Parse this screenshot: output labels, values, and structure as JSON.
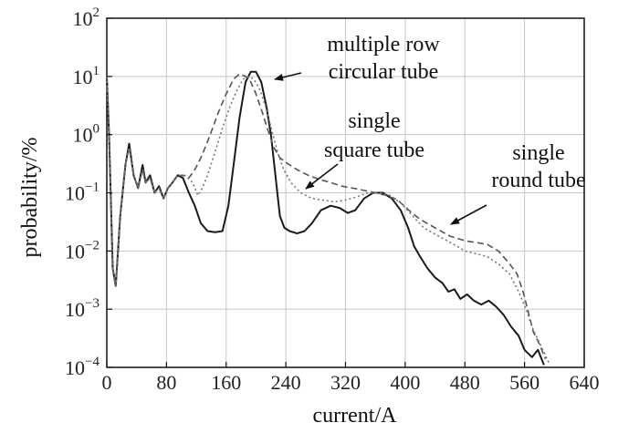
{
  "chart_data": {
    "type": "line",
    "title": "",
    "xlabel": "current/A",
    "ylabel": "probability/%",
    "xlim": [
      0,
      640
    ],
    "ylim": [
      0.0001,
      100
    ],
    "yscale": "log",
    "grid": true,
    "x_ticks": [
      {
        "value": 0,
        "label": "0"
      },
      {
        "value": 80,
        "label": "80"
      },
      {
        "value": 160,
        "label": "160"
      },
      {
        "value": 240,
        "label": "240"
      },
      {
        "value": 320,
        "label": "320"
      },
      {
        "value": 400,
        "label": "400"
      },
      {
        "value": 480,
        "label": "480"
      },
      {
        "value": 560,
        "label": "560"
      },
      {
        "value": 640,
        "label": "640"
      }
    ],
    "y_ticks": [
      {
        "value": 0.0001,
        "exp": "−4"
      },
      {
        "value": 0.001,
        "exp": "−3"
      },
      {
        "value": 0.01,
        "exp": "−2"
      },
      {
        "value": 0.1,
        "exp": "−1"
      },
      {
        "value": 1,
        "exp": "0"
      },
      {
        "value": 10,
        "exp": "1"
      },
      {
        "value": 100,
        "exp": "2"
      }
    ],
    "series": [
      {
        "key": "multiple",
        "color": "#1a1a1a",
        "dash": "solid",
        "points": [
          [
            0,
            10
          ],
          [
            3,
            1
          ],
          [
            8,
            0.005
          ],
          [
            12,
            0.0025
          ],
          [
            18,
            0.04
          ],
          [
            25,
            0.3
          ],
          [
            30,
            0.7
          ],
          [
            36,
            0.2
          ],
          [
            42,
            0.12
          ],
          [
            48,
            0.3
          ],
          [
            52,
            0.15
          ],
          [
            58,
            0.2
          ],
          [
            64,
            0.1
          ],
          [
            70,
            0.13
          ],
          [
            76,
            0.08
          ],
          [
            82,
            0.12
          ],
          [
            88,
            0.15
          ],
          [
            95,
            0.2
          ],
          [
            102,
            0.18
          ],
          [
            110,
            0.1
          ],
          [
            118,
            0.06
          ],
          [
            126,
            0.03
          ],
          [
            135,
            0.022
          ],
          [
            145,
            0.021
          ],
          [
            155,
            0.022
          ],
          [
            163,
            0.06
          ],
          [
            170,
            0.3
          ],
          [
            178,
            2
          ],
          [
            186,
            8
          ],
          [
            193,
            12
          ],
          [
            200,
            12
          ],
          [
            207,
            8
          ],
          [
            214,
            3
          ],
          [
            220,
            1
          ],
          [
            226,
            0.2
          ],
          [
            232,
            0.04
          ],
          [
            238,
            0.025
          ],
          [
            245,
            0.022
          ],
          [
            255,
            0.02
          ],
          [
            265,
            0.022
          ],
          [
            275,
            0.03
          ],
          [
            287,
            0.05
          ],
          [
            300,
            0.06
          ],
          [
            312,
            0.055
          ],
          [
            323,
            0.045
          ],
          [
            333,
            0.05
          ],
          [
            345,
            0.08
          ],
          [
            357,
            0.1
          ],
          [
            370,
            0.1
          ],
          [
            382,
            0.08
          ],
          [
            394,
            0.05
          ],
          [
            404,
            0.025
          ],
          [
            412,
            0.012
          ],
          [
            420,
            0.008
          ],
          [
            430,
            0.005
          ],
          [
            440,
            0.0035
          ],
          [
            450,
            0.0028
          ],
          [
            458,
            0.002
          ],
          [
            466,
            0.0022
          ],
          [
            474,
            0.0015
          ],
          [
            483,
            0.0018
          ],
          [
            492,
            0.0014
          ],
          [
            502,
            0.0012
          ],
          [
            512,
            0.0014
          ],
          [
            522,
            0.0011
          ],
          [
            532,
            0.0008
          ],
          [
            542,
            0.0005
          ],
          [
            552,
            0.00035
          ],
          [
            560,
            0.0002
          ],
          [
            570,
            0.00015
          ],
          [
            578,
            0.0002
          ],
          [
            586,
            0.00011
          ]
        ]
      },
      {
        "key": "square",
        "color": "#555555",
        "dash": "7 4",
        "points": [
          [
            0,
            10
          ],
          [
            3,
            1
          ],
          [
            8,
            0.005
          ],
          [
            12,
            0.0025
          ],
          [
            18,
            0.04
          ],
          [
            25,
            0.3
          ],
          [
            30,
            0.6
          ],
          [
            36,
            0.2
          ],
          [
            42,
            0.12
          ],
          [
            48,
            0.25
          ],
          [
            52,
            0.15
          ],
          [
            58,
            0.18
          ],
          [
            64,
            0.1
          ],
          [
            70,
            0.12
          ],
          [
            76,
            0.08
          ],
          [
            82,
            0.12
          ],
          [
            88,
            0.15
          ],
          [
            95,
            0.2
          ],
          [
            102,
            0.2
          ],
          [
            110,
            0.18
          ],
          [
            118,
            0.25
          ],
          [
            126,
            0.4
          ],
          [
            134,
            0.7
          ],
          [
            142,
            1.3
          ],
          [
            150,
            2.5
          ],
          [
            160,
            5
          ],
          [
            170,
            9
          ],
          [
            178,
            11
          ],
          [
            186,
            10
          ],
          [
            193,
            8
          ],
          [
            200,
            5
          ],
          [
            208,
            2.5
          ],
          [
            216,
            1.2
          ],
          [
            224,
            0.6
          ],
          [
            232,
            0.4
          ],
          [
            242,
            0.32
          ],
          [
            255,
            0.25
          ],
          [
            270,
            0.2
          ],
          [
            285,
            0.17
          ],
          [
            300,
            0.15
          ],
          [
            315,
            0.13
          ],
          [
            330,
            0.12
          ],
          [
            345,
            0.11
          ],
          [
            360,
            0.1
          ],
          [
            375,
            0.09
          ],
          [
            390,
            0.075
          ],
          [
            405,
            0.05
          ],
          [
            420,
            0.035
          ],
          [
            440,
            0.025
          ],
          [
            460,
            0.018
          ],
          [
            480,
            0.015
          ],
          [
            495,
            0.014
          ],
          [
            510,
            0.013
          ],
          [
            525,
            0.01
          ],
          [
            540,
            0.006
          ],
          [
            550,
            0.004
          ],
          [
            558,
            0.002
          ],
          [
            566,
            0.0008
          ],
          [
            572,
            0.0004
          ],
          [
            580,
            0.00025
          ],
          [
            588,
            0.00014
          ]
        ]
      },
      {
        "key": "round",
        "color": "#777777",
        "dash": "2 3",
        "points": [
          [
            0,
            10
          ],
          [
            3,
            1
          ],
          [
            8,
            0.005
          ],
          [
            12,
            0.0025
          ],
          [
            18,
            0.04
          ],
          [
            25,
            0.3
          ],
          [
            30,
            0.6
          ],
          [
            36,
            0.2
          ],
          [
            42,
            0.12
          ],
          [
            48,
            0.25
          ],
          [
            52,
            0.15
          ],
          [
            58,
            0.18
          ],
          [
            64,
            0.1
          ],
          [
            70,
            0.12
          ],
          [
            76,
            0.08
          ],
          [
            82,
            0.12
          ],
          [
            88,
            0.15
          ],
          [
            95,
            0.2
          ],
          [
            105,
            0.2
          ],
          [
            115,
            0.15
          ],
          [
            122,
            0.09
          ],
          [
            128,
            0.12
          ],
          [
            135,
            0.2
          ],
          [
            145,
            0.5
          ],
          [
            155,
            1.3
          ],
          [
            165,
            3
          ],
          [
            175,
            6
          ],
          [
            183,
            9
          ],
          [
            190,
            10
          ],
          [
            197,
            9
          ],
          [
            205,
            6
          ],
          [
            213,
            3
          ],
          [
            221,
            1.2
          ],
          [
            229,
            0.5
          ],
          [
            237,
            0.25
          ],
          [
            247,
            0.15
          ],
          [
            260,
            0.1
          ],
          [
            275,
            0.08
          ],
          [
            290,
            0.075
          ],
          [
            305,
            0.07
          ],
          [
            320,
            0.075
          ],
          [
            335,
            0.085
          ],
          [
            350,
            0.1
          ],
          [
            365,
            0.1
          ],
          [
            380,
            0.09
          ],
          [
            395,
            0.065
          ],
          [
            410,
            0.04
          ],
          [
            425,
            0.025
          ],
          [
            445,
            0.018
          ],
          [
            465,
            0.013
          ],
          [
            480,
            0.01
          ],
          [
            495,
            0.009
          ],
          [
            510,
            0.008
          ],
          [
            525,
            0.006
          ],
          [
            540,
            0.004
          ],
          [
            552,
            0.002
          ],
          [
            562,
            0.001
          ],
          [
            570,
            0.0005
          ],
          [
            578,
            0.0003
          ],
          [
            586,
            0.00018
          ],
          [
            594,
            0.00011
          ]
        ]
      }
    ],
    "annotations": [
      {
        "key": "multiple",
        "lines": [
          "multiple row",
          "circular tube"
        ]
      },
      {
        "key": "square",
        "lines": [
          "single",
          "square tube"
        ]
      },
      {
        "key": "round",
        "lines": [
          "single",
          "round tube"
        ]
      }
    ]
  }
}
